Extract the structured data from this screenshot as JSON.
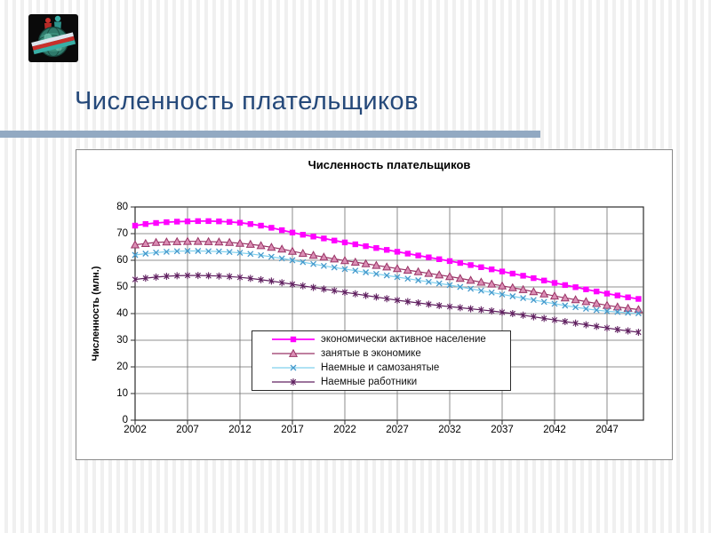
{
  "slide": {
    "title": "Численность плательщиков"
  },
  "colors": {
    "slide_title": "#25497A",
    "title_bar": "#92A9C2",
    "grid": "#6e6e6e",
    "axis": "#2b2b2b"
  },
  "chart_data": {
    "type": "line",
    "title": "Численность плательщиков",
    "xlabel": "",
    "ylabel": "Численность (млн.)",
    "ylim": [
      0,
      80
    ],
    "grid": true,
    "legend_position": "inside-bottom-center",
    "x_tick_labels": [
      2002,
      2007,
      2012,
      2017,
      2022,
      2027,
      2032,
      2037,
      2042,
      2047
    ],
    "y_tick_labels": [
      0,
      10,
      20,
      30,
      40,
      50,
      60,
      70,
      80
    ],
    "x": [
      2002,
      2003,
      2004,
      2005,
      2006,
      2007,
      2008,
      2009,
      2010,
      2011,
      2012,
      2013,
      2014,
      2015,
      2016,
      2017,
      2018,
      2019,
      2020,
      2021,
      2022,
      2023,
      2024,
      2025,
      2026,
      2027,
      2028,
      2029,
      2030,
      2031,
      2032,
      2033,
      2034,
      2035,
      2036,
      2037,
      2038,
      2039,
      2040,
      2041,
      2042,
      2043,
      2044,
      2045,
      2046,
      2047,
      2048,
      2049,
      2050
    ],
    "series": [
      {
        "name": "экономически активное население",
        "color": "#FF00FF",
        "marker": "square",
        "marker_color": "#FF00FF",
        "line_width": 1.8,
        "values": [
          73.0,
          73.6,
          74.0,
          74.3,
          74.5,
          74.6,
          74.7,
          74.7,
          74.6,
          74.4,
          74.1,
          73.6,
          73.0,
          72.2,
          71.3,
          70.4,
          69.6,
          68.9,
          68.2,
          67.4,
          66.7,
          66.0,
          65.3,
          64.6,
          63.9,
          63.2,
          62.5,
          61.8,
          61.1,
          60.4,
          59.7,
          59.0,
          58.2,
          57.4,
          56.6,
          55.8,
          55.0,
          54.2,
          53.3,
          52.4,
          51.5,
          50.7,
          49.9,
          49.1,
          48.3,
          47.5,
          46.8,
          46.1,
          45.5
        ]
      },
      {
        "name": "занятые в экономике",
        "color": "#993366",
        "marker": "triangle",
        "marker_color": "#DB8FB5",
        "line_width": 1.2,
        "values": [
          65.8,
          66.3,
          66.7,
          66.9,
          67.0,
          67.1,
          67.1,
          67.0,
          66.9,
          66.7,
          66.4,
          66.0,
          65.5,
          64.9,
          64.2,
          63.4,
          62.6,
          61.9,
          61.2,
          60.5,
          59.9,
          59.3,
          58.7,
          58.1,
          57.5,
          56.9,
          56.3,
          55.7,
          55.1,
          54.5,
          53.9,
          53.2,
          52.5,
          51.8,
          51.1,
          50.4,
          49.7,
          49.0,
          48.2,
          47.4,
          46.6,
          45.9,
          45.2,
          44.5,
          43.8,
          43.1,
          42.5,
          42.0,
          41.5
        ]
      },
      {
        "name": "Наемные и самозанятые",
        "color": "#7FD0EE",
        "marker": "x",
        "marker_color": "#4499CC",
        "line_width": 1.2,
        "values": [
          62.0,
          62.5,
          62.9,
          63.2,
          63.4,
          63.5,
          63.5,
          63.4,
          63.3,
          63.1,
          62.8,
          62.4,
          61.9,
          61.3,
          60.7,
          60.0,
          59.3,
          58.6,
          57.9,
          57.3,
          56.7,
          56.1,
          55.5,
          54.9,
          54.3,
          53.7,
          53.1,
          52.5,
          51.9,
          51.3,
          50.7,
          50.0,
          49.3,
          48.6,
          47.9,
          47.2,
          46.5,
          45.8,
          45.1,
          44.4,
          43.7,
          43.0,
          42.4,
          41.8,
          41.3,
          40.9,
          40.6,
          40.3,
          40.1
        ]
      },
      {
        "name": "Наемные работники",
        "color": "#602060",
        "marker": "star",
        "marker_color": "#602060",
        "line_width": 1.2,
        "values": [
          52.8,
          53.3,
          53.7,
          54.0,
          54.2,
          54.3,
          54.3,
          54.2,
          54.1,
          53.9,
          53.6,
          53.2,
          52.7,
          52.2,
          51.6,
          51.0,
          50.4,
          49.8,
          49.2,
          48.6,
          48.0,
          47.4,
          46.8,
          46.2,
          45.6,
          45.0,
          44.5,
          44.0,
          43.5,
          43.0,
          42.6,
          42.2,
          41.8,
          41.4,
          41.0,
          40.5,
          40.0,
          39.4,
          38.8,
          38.2,
          37.6,
          37.0,
          36.4,
          35.8,
          35.2,
          34.6,
          34.0,
          33.5,
          33.0
        ]
      }
    ]
  }
}
